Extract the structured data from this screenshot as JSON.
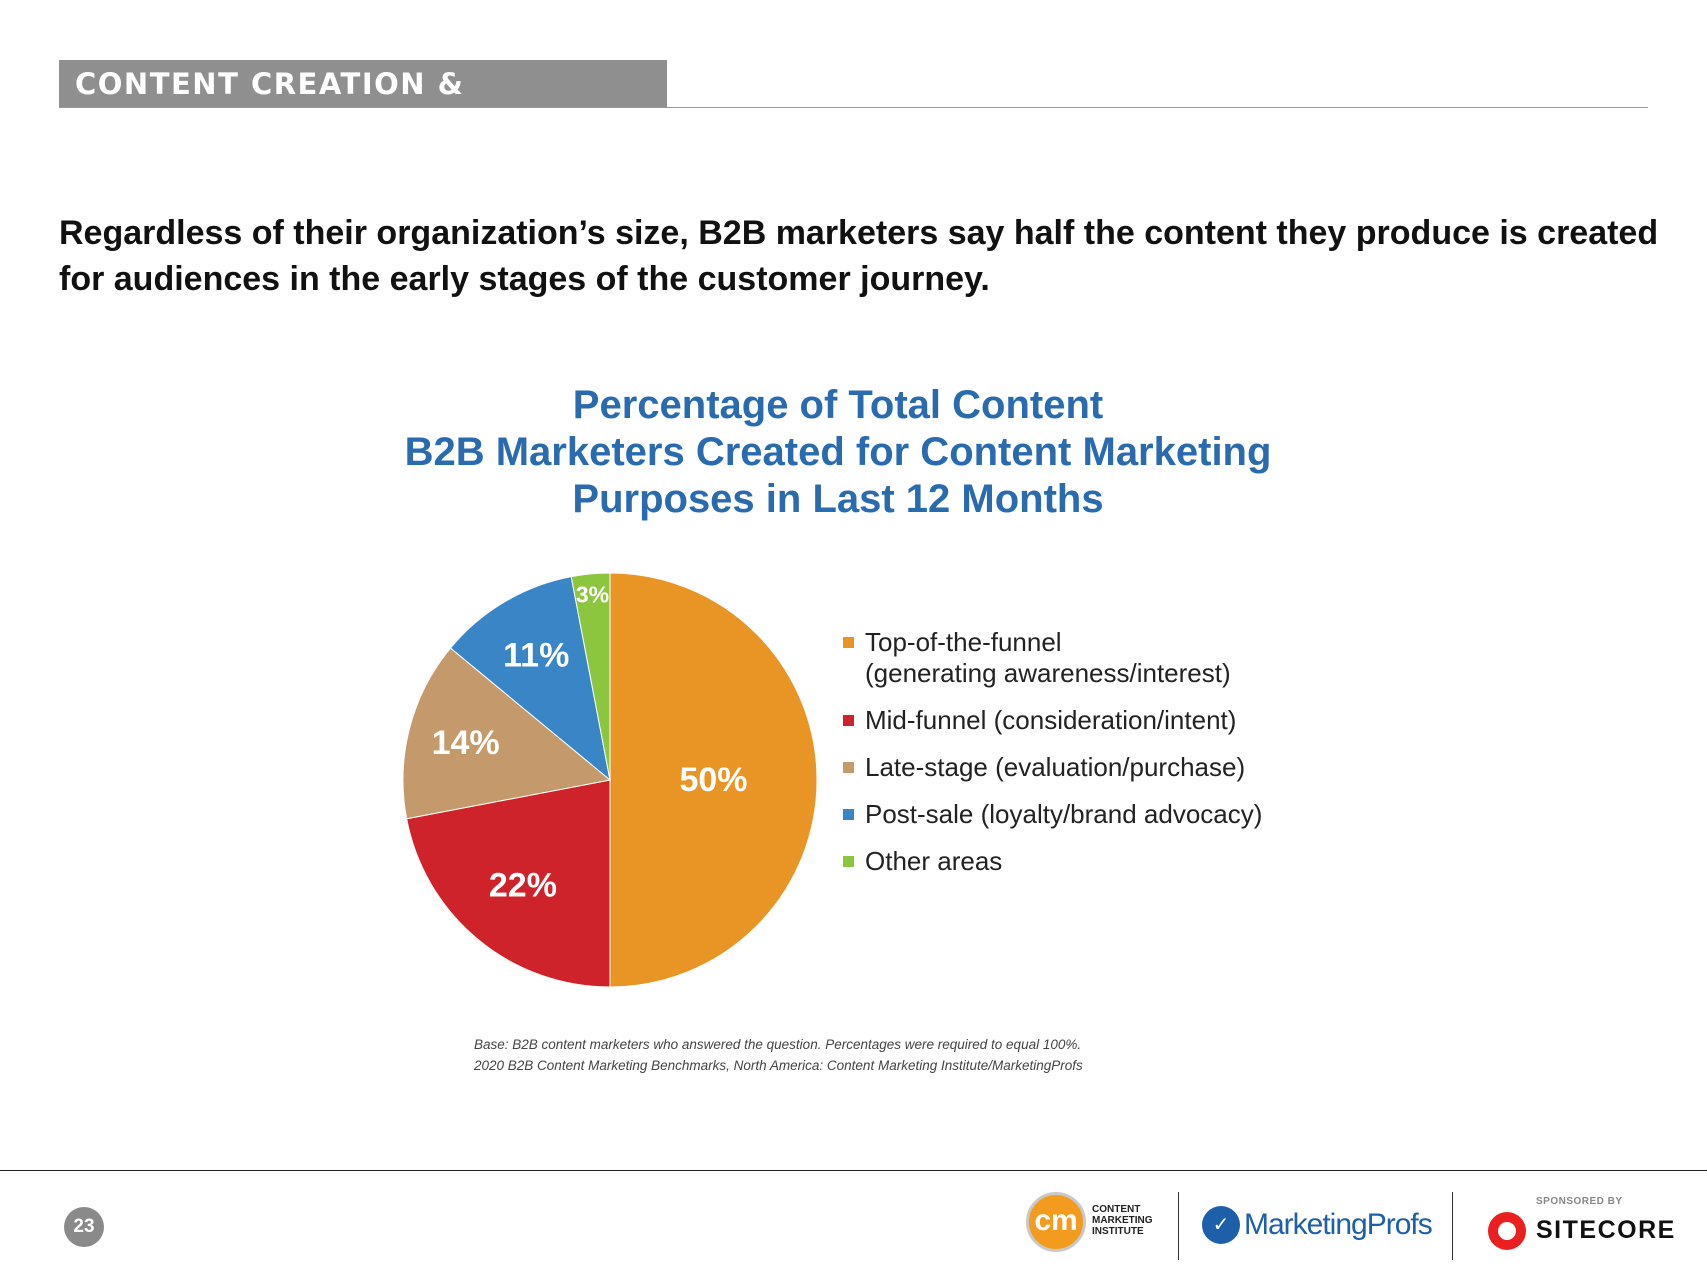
{
  "section": {
    "label": "CONTENT CREATION & DISTRIBUTION"
  },
  "headline": "Regardless of their organization’s size, B2B marketers say half the content they produce is created for audiences in the early stages of the customer journey.",
  "chart_data": {
    "type": "pie",
    "title": "Percentage of Total Content B2B Marketers Created for Content Marketing Purposes in Last 12 Months",
    "title_lines": [
      "Percentage of Total Content",
      "B2B Marketers Created for Content Marketing",
      "Purposes in Last 12 Months"
    ],
    "categories": [
      "Top-of-the-funnel (generating awareness/interest)",
      "Mid-funnel (consideration/intent)",
      "Late-stage (evaluation/purchase)",
      "Post-sale (loyalty/brand advocacy)",
      "Other areas"
    ],
    "legend_lines": [
      [
        "Top-of-the-funnel",
        "(generating awareness/interest)"
      ],
      [
        "Mid-funnel (consideration/intent)"
      ],
      [
        "Late-stage (evaluation/purchase)"
      ],
      [
        "Post-sale (loyalty/brand advocacy)"
      ],
      [
        "Other areas"
      ]
    ],
    "values": [
      50,
      22,
      14,
      11,
      3
    ],
    "value_labels": [
      "50%",
      "22%",
      "14%",
      "11%",
      "3%"
    ],
    "colors": [
      "#e89525",
      "#cf232b",
      "#c49a6c",
      "#3985c6",
      "#8cc63f"
    ],
    "legend_position": "right"
  },
  "footnote": {
    "base": "Base: B2B content marketers who answered the question. Percentages were required to equal 100%.",
    "source": "2020 B2B Content Marketing Benchmarks, North America: Content Marketing Institute/MarketingProfs"
  },
  "footer": {
    "page_number": "23",
    "cmi": {
      "mark": "cm",
      "line1": "CONTENT",
      "line2": "MARKETING",
      "line3": "INSTITUTE"
    },
    "marketingprofs": "MarketingProfs",
    "sponsored_by": "SPONSORED BY",
    "sitecore": "SITECORE"
  }
}
